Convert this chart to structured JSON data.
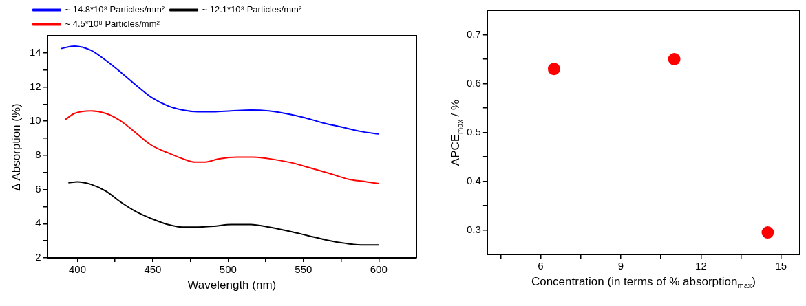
{
  "chart_data": [
    {
      "type": "line",
      "xlabel": "Wavelength (nm)",
      "ylabel": "Δ Absorption (%)",
      "legend": "top",
      "marker": "none",
      "line_style": "solid",
      "grid": false,
      "xlim": [
        380,
        625
      ],
      "xticks": [
        400,
        {
          "value": 425,
          "label": null
        },
        450,
        {
          "value": 475,
          "label": null
        },
        500,
        {
          "value": 525,
          "label": null
        },
        550,
        {
          "value": 575,
          "label": null
        },
        600
      ],
      "ylim": [
        2,
        15
      ],
      "yticks": [
        2,
        {
          "value": 3,
          "label": null
        },
        4,
        {
          "value": 5,
          "label": null
        },
        6,
        {
          "value": 7,
          "label": null
        },
        8,
        {
          "value": 9,
          "label": null
        },
        10,
        {
          "value": 11,
          "label": null
        },
        12,
        {
          "value": 13,
          "label": null
        },
        14
      ],
      "series": [
        {
          "name": "~ 14.8*10⁸ Particles/mm²",
          "color": "#0000ff",
          "x": [
            389,
            398,
            409,
            419,
            429,
            439,
            449,
            460,
            470,
            480,
            490,
            502,
            515,
            527,
            541,
            551,
            563,
            576,
            588,
            600
          ],
          "values": [
            14.25,
            14.4,
            14.15,
            13.55,
            12.85,
            12.1,
            11.4,
            10.9,
            10.65,
            10.55,
            10.55,
            10.6,
            10.65,
            10.6,
            10.4,
            10.2,
            9.9,
            9.65,
            9.4,
            9.25
          ]
        },
        {
          "name": "~ 12.1*10⁸ Particles/mm²",
          "color": "#000000",
          "x": [
            394,
            400,
            409,
            419,
            429,
            439,
            449,
            460,
            470,
            478,
            490,
            502,
            515,
            527,
            541,
            553,
            565,
            578,
            590,
            600
          ],
          "values": [
            6.4,
            6.45,
            6.3,
            5.9,
            5.25,
            4.7,
            4.3,
            3.95,
            3.8,
            3.8,
            3.85,
            3.95,
            3.95,
            3.8,
            3.55,
            3.3,
            3.05,
            2.85,
            2.75,
            2.75
          ]
        },
        {
          "name": "~ 4.5*10⁸ Particles/mm²",
          "color": "#ff0000",
          "x": [
            392,
            398,
            409,
            419,
            429,
            439,
            449,
            460,
            470,
            478,
            484,
            494,
            506,
            517,
            531,
            543,
            555,
            567,
            580,
            592,
            600
          ],
          "values": [
            10.1,
            10.45,
            10.6,
            10.45,
            10.0,
            9.3,
            8.6,
            8.15,
            7.8,
            7.6,
            7.6,
            7.8,
            7.9,
            7.9,
            7.75,
            7.55,
            7.25,
            6.95,
            6.6,
            6.45,
            6.35
          ]
        }
      ]
    },
    {
      "type": "scatter",
      "xlabel": "Concentration (in terms of % absorption$_{max}$)",
      "ylabel": "APCE$_{max}$ / %",
      "legend": false,
      "marker": "circle",
      "grid": false,
      "xlim": [
        4,
        15.7
      ],
      "xticks": [
        {
          "value": 4.5,
          "label": null
        },
        6,
        {
          "value": 7.5,
          "label": null
        },
        9,
        {
          "value": 10.5,
          "label": null
        },
        12,
        {
          "value": 13.5,
          "label": null
        },
        15
      ],
      "ylim": [
        0.25,
        0.75
      ],
      "yticks": [
        0.3,
        {
          "value": 0.35,
          "label": null
        },
        0.4,
        {
          "value": 0.45,
          "label": null
        },
        0.5,
        {
          "value": 0.55,
          "label": null
        },
        0.6,
        {
          "value": 0.65,
          "label": null
        },
        0.7
      ],
      "series": [
        {
          "color": "#ff0000",
          "x": [
            6.5,
            11,
            14.5
          ],
          "values": [
            0.63,
            0.65,
            0.295
          ]
        }
      ]
    }
  ]
}
